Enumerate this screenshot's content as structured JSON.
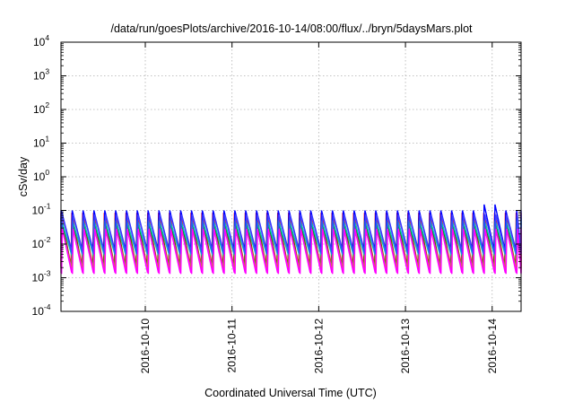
{
  "chart_data": {
    "type": "line",
    "title": "/data/run/goesPlots/archive/2016-10-14/08:00/flux/../bryn/5daysMars.plot",
    "xlabel": "Coordinated Universal Time (UTC)",
    "ylabel": "cSv/day",
    "y_scale": "log",
    "ylim": [
      0.0001,
      10000
    ],
    "y_ticks": [
      {
        "base": "10",
        "exp": "4"
      },
      {
        "base": "10",
        "exp": "3"
      },
      {
        "base": "10",
        "exp": "2"
      },
      {
        "base": "10",
        "exp": "1"
      },
      {
        "base": "10",
        "exp": "0"
      },
      {
        "base": "10",
        "exp": "-1"
      },
      {
        "base": "10",
        "exp": "-2"
      },
      {
        "base": "10",
        "exp": "-3"
      },
      {
        "base": "10",
        "exp": "-4"
      }
    ],
    "x_range": [
      "2016-10-09 00:40",
      "2016-10-14 08:00"
    ],
    "x_ticks": [
      "2016-10-10",
      "2016-10-11",
      "2016-10-12",
      "2016-10-13",
      "2016-10-14"
    ],
    "grid": true,
    "legend": "none",
    "sawtooth_period_hours": 3,
    "series": [
      {
        "color": "#ff0000",
        "peak": 0.085,
        "trough": 0.0022
      },
      {
        "color": "#00a000",
        "peak": 0.06,
        "trough": 0.0019
      },
      {
        "color": "#0000ff",
        "peak": 0.1,
        "trough": 0.0066
      },
      {
        "color": "#ff00ff",
        "peak": 0.035,
        "trough": 0.0014
      },
      {
        "color": "#00c0c0",
        "peak": 0.05,
        "trough": 0.0045
      },
      {
        "color": "#c0a000",
        "peak": 0.03,
        "trough": 0.0017
      },
      {
        "color": "#4040ff",
        "peak": 0.075,
        "trough": 0.005
      },
      {
        "color": "#ff00ff",
        "peak": 0.028,
        "trough": 0.0013
      }
    ],
    "peak_spike": {
      "x": "2016-10-13 23:00",
      "value": 0.15
    }
  }
}
